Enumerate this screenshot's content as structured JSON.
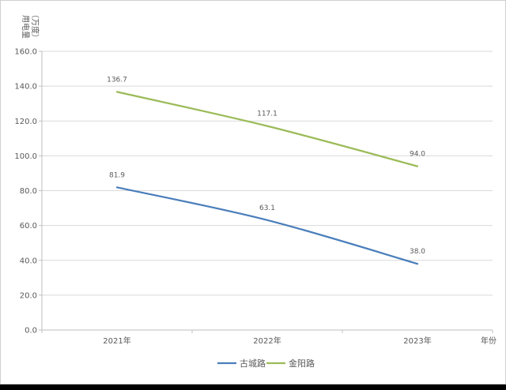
{
  "chart_data": {
    "type": "line",
    "ylabel_line1": "用电量",
    "ylabel_line2": "（万度）",
    "xlabel": "年份",
    "categories": [
      "2021年",
      "2022年",
      "2023年"
    ],
    "ylim": [
      0,
      160
    ],
    "yticks": [
      "0.0",
      "20.0",
      "40.0",
      "60.0",
      "80.0",
      "100.0",
      "120.0",
      "140.0",
      "160.0"
    ],
    "grid": true,
    "legend_position": "bottom",
    "series": [
      {
        "name": "古城路",
        "color": "#4a7ebb",
        "values": [
          81.9,
          63.1,
          38.0
        ],
        "labels": [
          "81.9",
          "63.1",
          "38.0"
        ]
      },
      {
        "name": "金阳路",
        "color": "#9bbb59",
        "values": [
          136.7,
          117.1,
          94.0
        ],
        "labels": [
          "136.7",
          "117.1",
          "94.0"
        ]
      }
    ]
  }
}
